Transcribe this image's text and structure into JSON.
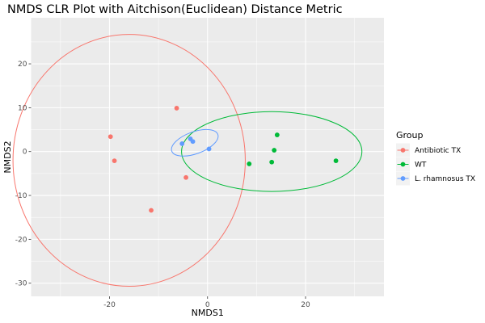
{
  "chart_data": {
    "type": "scatter",
    "title": "NMDS CLR Plot with Aitchison(Euclidean) Distance Metric",
    "xlabel": "NMDS1",
    "ylabel": "NMDS2",
    "xlim": [
      -36,
      36
    ],
    "ylim": [
      -33,
      30.5
    ],
    "x_ticks": [
      -20,
      0,
      20
    ],
    "y_ticks": [
      20,
      10,
      0,
      -10,
      -20,
      -30
    ],
    "grid": true,
    "background": "#ebebeb",
    "legend": {
      "title": "Group",
      "position": "right",
      "entries": [
        "Antibiotic TX",
        "WT",
        "L. rhamnosus TX"
      ]
    },
    "series": [
      {
        "name": "Antibiotic TX",
        "color": "#f8766d",
        "points": [
          [
            -6.3,
            9.9
          ],
          [
            -19.8,
            3.4
          ],
          [
            -19.0,
            -2.1
          ],
          [
            -4.4,
            -5.9
          ],
          [
            -11.5,
            -13.4
          ]
        ],
        "ellipse": {
          "cx": -16.0,
          "cy": -2.0,
          "rx": 23.7,
          "ry": 28.7
        }
      },
      {
        "name": "WT",
        "color": "#00ba38",
        "points": [
          [
            14.2,
            3.8
          ],
          [
            13.6,
            0.3
          ],
          [
            26.2,
            -2.1
          ],
          [
            13.1,
            -2.4
          ],
          [
            8.5,
            -2.8
          ]
        ],
        "ellipse": {
          "cx": 13.1,
          "cy": 0.0,
          "rx": 18.4,
          "ry": 9.1
        }
      },
      {
        "name": "L. rhamnosus TX",
        "color": "#619cff",
        "points": [
          [
            -3.5,
            2.9
          ],
          [
            -3.0,
            2.3
          ],
          [
            -5.2,
            1.8
          ],
          [
            0.3,
            0.6
          ]
        ],
        "ellipse": {
          "cx": -2.6,
          "cy": 2.0,
          "rx": 5.0,
          "ry": 2.5,
          "angle": -20
        }
      }
    ]
  }
}
